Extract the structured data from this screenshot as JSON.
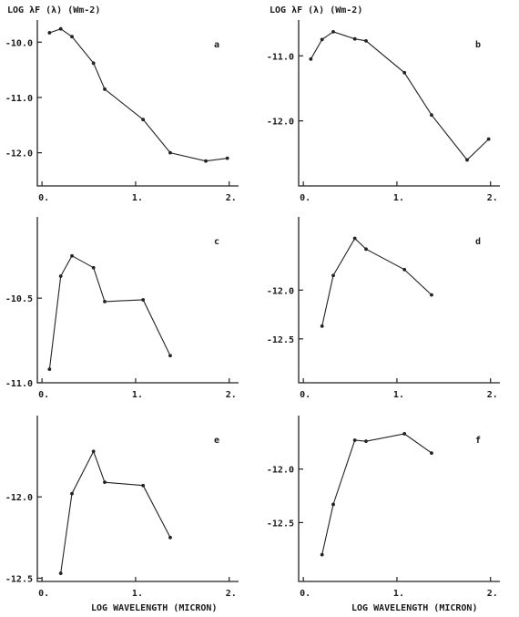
{
  "figure": {
    "yaxis_title": "LOG λF (λ) (Wm-2)",
    "xaxis_title": "LOG  WAVELENGTH (MICRON)"
  },
  "chart_data": [
    {
      "type": "line",
      "panel": "a",
      "xlim": [
        -0.05,
        2.1
      ],
      "ylim": [
        -12.6,
        -9.6
      ],
      "xticks": [
        0,
        1,
        2
      ],
      "xtick_labels": [
        "0.",
        "1.",
        "2."
      ],
      "yticks": [
        -10,
        -11,
        -12
      ],
      "ytick_labels": [
        "-10.0",
        "-11.0",
        "-12.0"
      ],
      "x": [
        0.08,
        0.2,
        0.32,
        0.55,
        0.67,
        1.08,
        1.37,
        1.75,
        1.98
      ],
      "y": [
        -9.83,
        -9.76,
        -9.9,
        -10.38,
        -10.85,
        -11.4,
        -12.0,
        -12.15,
        -12.1
      ]
    },
    {
      "type": "line",
      "panel": "b",
      "xlim": [
        -0.05,
        2.1
      ],
      "ylim": [
        -13.0,
        -10.45
      ],
      "xticks": [
        0,
        1,
        2
      ],
      "xtick_labels": [
        "0.",
        "1.",
        "2."
      ],
      "yticks": [
        -11,
        -12
      ],
      "ytick_labels": [
        "-11.0",
        "-12.0"
      ],
      "x": [
        0.08,
        0.2,
        0.32,
        0.55,
        0.67,
        1.08,
        1.37,
        1.75,
        1.98
      ],
      "y": [
        -11.05,
        -10.75,
        -10.63,
        -10.74,
        -10.77,
        -11.26,
        -11.91,
        -12.6,
        -12.28
      ]
    },
    {
      "type": "line",
      "panel": "c",
      "xlim": [
        -0.05,
        2.1
      ],
      "ylim": [
        -11.0,
        -10.02
      ],
      "xticks": [
        0,
        1,
        2
      ],
      "xtick_labels": [
        "0.",
        "1.",
        "2."
      ],
      "yticks": [
        -10.5,
        -11
      ],
      "ytick_labels": [
        "-10.5",
        "-11.0"
      ],
      "x": [
        0.08,
        0.2,
        0.32,
        0.55,
        0.67,
        1.08,
        1.37
      ],
      "y": [
        -10.92,
        -10.37,
        -10.25,
        -10.32,
        -10.52,
        -10.51,
        -10.84
      ]
    },
    {
      "type": "line",
      "panel": "d",
      "xlim": [
        -0.05,
        2.1
      ],
      "ylim": [
        -12.95,
        -11.25
      ],
      "xticks": [
        0,
        1,
        2
      ],
      "xtick_labels": [
        "0.",
        "1.",
        "2."
      ],
      "yticks": [
        -12,
        -12.5
      ],
      "ytick_labels": [
        "-12.0",
        "-12.5"
      ],
      "x": [
        0.2,
        0.32,
        0.55,
        0.67,
        1.08,
        1.37
      ],
      "y": [
        -12.37,
        -11.85,
        -11.47,
        -11.58,
        -11.79,
        -12.05
      ]
    },
    {
      "type": "line",
      "panel": "e",
      "xlim": [
        -0.05,
        2.1
      ],
      "ylim": [
        -12.52,
        -11.5
      ],
      "xticks": [
        0,
        1,
        2
      ],
      "xtick_labels": [
        "0.",
        "1.",
        "2."
      ],
      "yticks": [
        -12,
        -12.5
      ],
      "ytick_labels": [
        "-12.0",
        "-12.5"
      ],
      "x": [
        0.2,
        0.32,
        0.55,
        0.67,
        1.08,
        1.37
      ],
      "y": [
        -12.47,
        -11.98,
        -11.72,
        -11.91,
        -11.93,
        -12.25
      ]
    },
    {
      "type": "line",
      "panel": "f",
      "xlim": [
        -0.05,
        2.1
      ],
      "ylim": [
        -13.05,
        -11.5
      ],
      "xticks": [
        0,
        1,
        2
      ],
      "xtick_labels": [
        "0.",
        "1.",
        "2."
      ],
      "yticks": [
        -12,
        -12.5
      ],
      "ytick_labels": [
        "-12.0",
        "-12.5"
      ],
      "x": [
        0.2,
        0.32,
        0.55,
        0.67,
        1.08,
        1.37
      ],
      "y": [
        -12.8,
        -12.33,
        -11.73,
        -11.74,
        -11.67,
        -11.85
      ]
    }
  ]
}
